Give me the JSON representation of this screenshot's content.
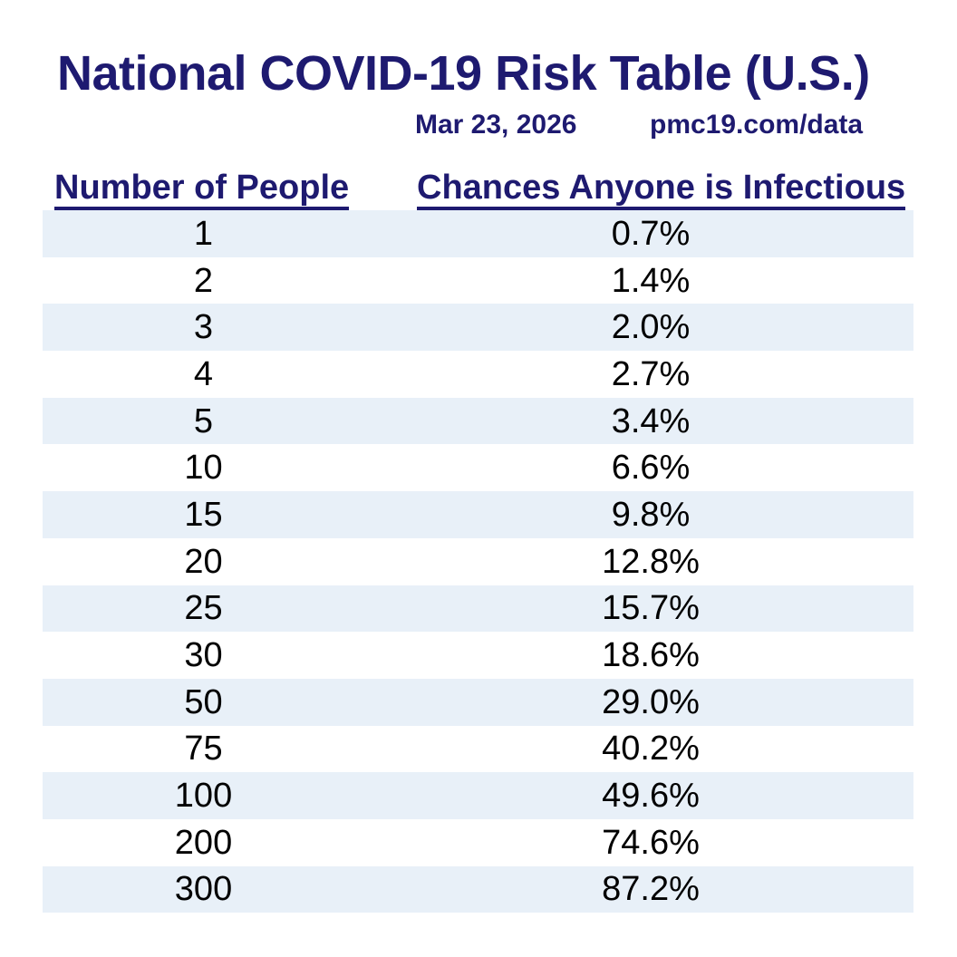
{
  "title": "National COVID-19 Risk Table (U.S.)",
  "subtitle": {
    "date": "Mar 23, 2026",
    "source_url": "pmc19.com/data"
  },
  "colors": {
    "navy": "#1e1a70",
    "row_stripe": "#e8f0f8",
    "row_text": "#000000",
    "background": "#ffffff"
  },
  "table": {
    "headers": {
      "people": "Number of People",
      "chance": "Chances Anyone is Infectious"
    },
    "rows": [
      {
        "people": "1",
        "chance": "0.7%"
      },
      {
        "people": "2",
        "chance": "1.4%"
      },
      {
        "people": "3",
        "chance": "2.0%"
      },
      {
        "people": "4",
        "chance": "2.7%"
      },
      {
        "people": "5",
        "chance": "3.4%"
      },
      {
        "people": "10",
        "chance": "6.6%"
      },
      {
        "people": "15",
        "chance": "9.8%"
      },
      {
        "people": "20",
        "chance": "12.8%"
      },
      {
        "people": "25",
        "chance": "15.7%"
      },
      {
        "people": "30",
        "chance": "18.6%"
      },
      {
        "people": "50",
        "chance": "29.0%"
      },
      {
        "people": "75",
        "chance": "40.2%"
      },
      {
        "people": "100",
        "chance": "49.6%"
      },
      {
        "people": "200",
        "chance": "74.6%"
      },
      {
        "people": "300",
        "chance": "87.2%"
      }
    ]
  },
  "chart_data": {
    "type": "table",
    "title": "National COVID-19 Risk Table (U.S.)",
    "date_label": "Mar 23, 2026",
    "source_label": "pmc19.com/data",
    "columns": [
      "Number of People",
      "Chances Anyone is Infectious"
    ],
    "number_of_people": [
      1,
      2,
      3,
      4,
      5,
      10,
      15,
      20,
      25,
      30,
      50,
      75,
      100,
      200,
      300
    ],
    "chance_anyone_infectious_percent": [
      0.7,
      1.4,
      2.0,
      2.7,
      3.4,
      6.6,
      9.8,
      12.8,
      15.7,
      18.6,
      29.0,
      40.2,
      49.6,
      74.6,
      87.2
    ],
    "layout": {
      "striped_rows": true,
      "stripe_color": "#e8f0f8",
      "header_underlined": true
    }
  }
}
